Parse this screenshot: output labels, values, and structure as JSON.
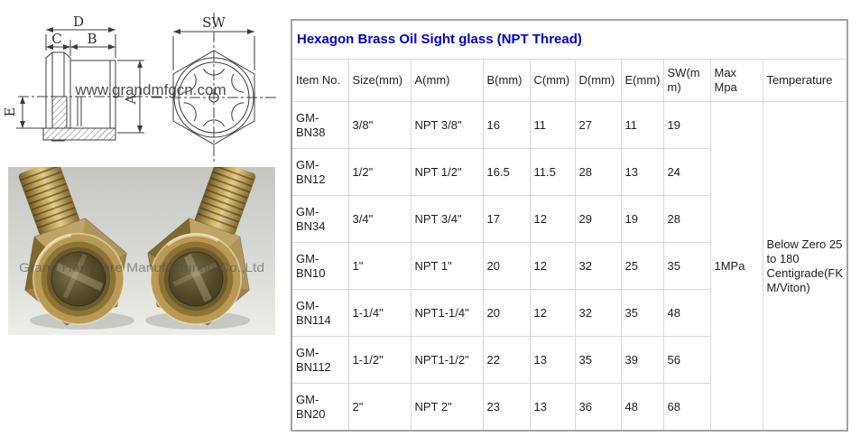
{
  "title": "Hexagon Brass Oil Sight glass (NPT Thread)",
  "title_color": "#0000cc",
  "drawing": {
    "labels": {
      "d": "D",
      "c": "C",
      "b": "B",
      "e": "E",
      "a": "A",
      "sw": "SW"
    },
    "watermark": "www.grandmfgcn.com"
  },
  "photo": {
    "watermark": "Grand Hardware Manufacturing Co.,Ltd",
    "brass_color": "#a08242",
    "background_color": "#cbcbc7"
  },
  "table": {
    "headers": [
      "Item No.",
      "Size(mm)",
      "A(mm)",
      "B(mm)",
      "C(mm)",
      "D(mm)",
      "E(mm)",
      "SW(mm)",
      "Max Mpa",
      "Temperature"
    ],
    "rows": [
      [
        "GM-BN38",
        "3/8\"",
        "NPT 3/8\"",
        "16",
        "11",
        "27",
        "11",
        "19"
      ],
      [
        "GM-BN12",
        "1/2\"",
        "NPT 1/2\"",
        "16.5",
        "11.5",
        "28",
        "13",
        "24"
      ],
      [
        "GM-BN34",
        "3/4\"",
        "NPT 3/4\"",
        "17",
        "12",
        "29",
        "19",
        "28"
      ],
      [
        "GM-BN10",
        "1\"",
        "NPT 1\"",
        "20",
        "12",
        "32",
        "25",
        "35"
      ],
      [
        "GM-BN114",
        "1-1/4\"",
        "NPT1-1/4\"",
        "20",
        "12",
        "32",
        "35",
        "48"
      ],
      [
        "GM-BN112",
        "1-1/2\"",
        "NPT1-1/2\"",
        "22",
        "13",
        "35",
        "39",
        "56"
      ],
      [
        "GM-BN20",
        "2\"",
        "NPT 2\"",
        "23",
        "13",
        "36",
        "48",
        "68"
      ]
    ],
    "max_mpa": "1MPa",
    "temperature": "Below Zero 25 to 180 Centigrade(FKM/Viton)"
  }
}
